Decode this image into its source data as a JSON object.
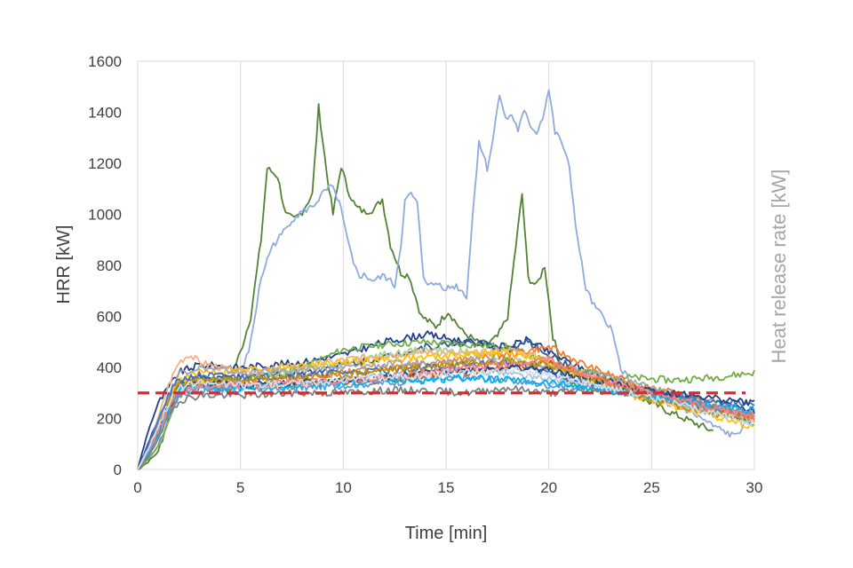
{
  "chart_data": {
    "type": "line",
    "xlabel": "Time [min]",
    "ylabel": "HRR [kW]",
    "ylabel_right": "Heat release rate [kW]",
    "xlim": [
      0,
      30
    ],
    "ylim": [
      0,
      1600
    ],
    "x_ticks": [
      "0",
      "5",
      "10",
      "15",
      "20",
      "25",
      "30"
    ],
    "y_ticks": [
      "0",
      "200",
      "400",
      "600",
      "800",
      "1000",
      "1200",
      "1400",
      "1600"
    ],
    "grid": "vertical gridlines",
    "legend": "none",
    "reference_line": {
      "y": 300,
      "color": "#e8262b",
      "style": "dashed"
    },
    "series": [
      {
        "color": "#548235",
        "x": [
          0,
          0.5,
          1,
          1.5,
          2,
          3,
          4,
          4.5,
          5,
          5.5,
          6,
          6.3,
          6.8,
          7.2,
          7.6,
          8,
          8.5,
          8.8,
          9.2,
          9.5,
          9.9,
          10.2,
          10.6,
          11,
          11.5,
          11.9,
          12.3,
          12.8,
          13.2,
          13.8,
          14.5,
          15.1,
          15.8,
          16.5,
          17,
          17.5,
          18,
          18.4,
          18.7,
          19,
          19.4,
          19.8,
          20.2,
          20.8,
          21.2,
          22,
          24,
          26,
          28
        ],
        "y": [
          0,
          30,
          70,
          200,
          330,
          360,
          340,
          360,
          460,
          600,
          900,
          1180,
          1150,
          1000,
          980,
          1010,
          1080,
          1420,
          1160,
          1000,
          1190,
          1100,
          1030,
          1010,
          1020,
          1060,
          880,
          770,
          760,
          600,
          560,
          620,
          540,
          500,
          490,
          520,
          600,
          880,
          1080,
          750,
          720,
          800,
          520,
          360,
          330,
          320,
          300,
          220,
          150
        ]
      },
      {
        "color": "#8faadc",
        "x": [
          0,
          0.5,
          1,
          1.5,
          2,
          3,
          4,
          5,
          5.5,
          6,
          6.5,
          7,
          7.5,
          8,
          8.5,
          9,
          9.4,
          9.8,
          10.2,
          10.5,
          10.8,
          11,
          11.5,
          12,
          12.5,
          12.8,
          13,
          13.3,
          13.6,
          13.9,
          14.2,
          14.6,
          15,
          15.5,
          16,
          16.3,
          16.6,
          17,
          17.3,
          17.6,
          17.9,
          18.2,
          18.5,
          18.8,
          19.1,
          19.4,
          19.7,
          20,
          20.3,
          20.6,
          21,
          21.4,
          21.8,
          22.2,
          22.6,
          23,
          23.5,
          24,
          25,
          26,
          27,
          28,
          29,
          30
        ],
        "y": [
          0,
          40,
          90,
          200,
          300,
          320,
          300,
          350,
          500,
          750,
          870,
          920,
          980,
          1010,
          1030,
          1080,
          1110,
          1050,
          900,
          800,
          760,
          760,
          740,
          760,
          720,
          880,
          1050,
          1080,
          1040,
          760,
          720,
          730,
          710,
          720,
          680,
          1000,
          1290,
          1180,
          1300,
          1480,
          1370,
          1390,
          1330,
          1400,
          1350,
          1320,
          1380,
          1490,
          1320,
          1290,
          1180,
          900,
          710,
          640,
          600,
          560,
          400,
          340,
          300,
          260,
          220,
          170,
          130,
          210
        ]
      },
      {
        "color": "#1f3f8f",
        "x": [
          0,
          0.5,
          1,
          1.5,
          2,
          3,
          5,
          8,
          10,
          12,
          14,
          16,
          18,
          19,
          20,
          22,
          24,
          26,
          28,
          30
        ],
        "y": [
          0,
          150,
          260,
          320,
          380,
          410,
          400,
          420,
          450,
          500,
          530,
          500,
          480,
          510,
          460,
          380,
          330,
          290,
          260,
          230
        ]
      },
      {
        "color": "#2f5597",
        "x": [
          0,
          0.5,
          1,
          1.5,
          2,
          3,
          5,
          8,
          10,
          12,
          14,
          16,
          18,
          19,
          20,
          22,
          24,
          26,
          28,
          30
        ],
        "y": [
          0,
          100,
          200,
          280,
          330,
          360,
          360,
          380,
          410,
          440,
          480,
          500,
          470,
          500,
          450,
          360,
          310,
          270,
          230,
          180
        ]
      },
      {
        "color": "#70ad47",
        "x": [
          0,
          0.5,
          1,
          1.5,
          2,
          3,
          5,
          8,
          10,
          12,
          14,
          16,
          18,
          20,
          22,
          24,
          26,
          28,
          30
        ],
        "y": [
          0,
          40,
          90,
          190,
          300,
          340,
          350,
          400,
          470,
          490,
          500,
          490,
          480,
          420,
          380,
          360,
          350,
          360,
          380
        ]
      },
      {
        "color": "#a9d18e",
        "x": [
          0,
          0.5,
          1,
          1.5,
          2,
          3,
          5,
          8,
          10,
          12,
          14,
          16,
          18,
          20,
          22,
          24,
          26,
          28,
          30
        ],
        "y": [
          0,
          60,
          140,
          240,
          320,
          340,
          350,
          390,
          420,
          450,
          470,
          460,
          440,
          400,
          350,
          310,
          280,
          240,
          200
        ]
      },
      {
        "color": "#ed7d31",
        "x": [
          0,
          0.5,
          1,
          1.5,
          2,
          3,
          5,
          8,
          10,
          12,
          14,
          16,
          18,
          20,
          22,
          24,
          26,
          28,
          30
        ],
        "y": [
          0,
          70,
          160,
          260,
          330,
          350,
          340,
          360,
          380,
          400,
          420,
          430,
          450,
          480,
          400,
          340,
          300,
          250,
          210
        ]
      },
      {
        "color": "#f4b183",
        "x": [
          0,
          0.5,
          1,
          1.5,
          2,
          2.5,
          3,
          5,
          8,
          10,
          12,
          14,
          16,
          18,
          20,
          22,
          24,
          26,
          28,
          30
        ],
        "y": [
          0,
          80,
          200,
          330,
          420,
          450,
          420,
          380,
          400,
          430,
          450,
          460,
          450,
          470,
          430,
          370,
          320,
          270,
          230,
          190
        ]
      },
      {
        "color": "#c55a11",
        "x": [
          0,
          0.5,
          1,
          1.5,
          2,
          3,
          5,
          8,
          10,
          12,
          14,
          16,
          18,
          20,
          22,
          24,
          26,
          28,
          30
        ],
        "y": [
          0,
          60,
          140,
          230,
          290,
          320,
          320,
          330,
          340,
          350,
          370,
          380,
          400,
          420,
          360,
          320,
          280,
          240,
          200
        ]
      },
      {
        "color": "#ffc000",
        "x": [
          0,
          0.5,
          1,
          1.5,
          2,
          3,
          5,
          8,
          10,
          12,
          14,
          16,
          18,
          20,
          22,
          24,
          26,
          28,
          30
        ],
        "y": [
          0,
          80,
          170,
          280,
          350,
          380,
          390,
          410,
          420,
          430,
          440,
          450,
          460,
          420,
          340,
          290,
          250,
          210,
          170
        ]
      },
      {
        "color": "#5b9bd5",
        "x": [
          0,
          0.5,
          1,
          1.5,
          2,
          3,
          5,
          8,
          10,
          12,
          14,
          16,
          18,
          20,
          22,
          24,
          26,
          28,
          30
        ],
        "y": [
          0,
          50,
          120,
          220,
          290,
          310,
          310,
          320,
          330,
          340,
          350,
          360,
          350,
          330,
          320,
          300,
          270,
          240,
          220
        ]
      },
      {
        "color": "#9dc3e6",
        "x": [
          0,
          0.5,
          1,
          1.5,
          2,
          3,
          5,
          8,
          10,
          12,
          14,
          16,
          18,
          20,
          22,
          24,
          26,
          28,
          30
        ],
        "y": [
          0,
          70,
          160,
          250,
          310,
          330,
          320,
          340,
          350,
          370,
          380,
          390,
          380,
          350,
          330,
          300,
          260,
          220,
          190
        ]
      },
      {
        "color": "#7f7f7f",
        "x": [
          0,
          0.5,
          1,
          1.5,
          2,
          3,
          5,
          8,
          10,
          12,
          14,
          16,
          18,
          20,
          22,
          24,
          26,
          28,
          30
        ],
        "y": [
          0,
          50,
          120,
          210,
          270,
          290,
          290,
          300,
          300,
          310,
          310,
          300,
          320,
          300,
          310,
          300,
          270,
          240,
          210
        ]
      },
      {
        "color": "#a5a5a5",
        "x": [
          0,
          0.5,
          1,
          1.5,
          2,
          3,
          5,
          8,
          10,
          12,
          14,
          16,
          18,
          20,
          22,
          24,
          26,
          28,
          30
        ],
        "y": [
          0,
          80,
          180,
          290,
          380,
          400,
          380,
          390,
          400,
          410,
          420,
          430,
          420,
          400,
          380,
          340,
          300,
          260,
          220
        ]
      },
      {
        "color": "#4472c4",
        "x": [
          0,
          0.5,
          1,
          1.5,
          2,
          3,
          5,
          8,
          10,
          12,
          14,
          16,
          18,
          20,
          22,
          24,
          26,
          28,
          30
        ],
        "y": [
          0,
          90,
          190,
          290,
          350,
          370,
          360,
          370,
          380,
          390,
          400,
          410,
          420,
          380,
          340,
          310,
          290,
          270,
          250
        ]
      },
      {
        "color": "#264478",
        "x": [
          0,
          0.5,
          1,
          1.5,
          2,
          3,
          5,
          8,
          10,
          12,
          14,
          16,
          18,
          20,
          22,
          24,
          26,
          28,
          30
        ],
        "y": [
          0,
          60,
          150,
          250,
          320,
          340,
          330,
          340,
          350,
          360,
          380,
          390,
          400,
          390,
          350,
          320,
          300,
          280,
          260
        ]
      },
      {
        "color": "#bf9000",
        "x": [
          0,
          0.5,
          1,
          1.5,
          2,
          3,
          5,
          8,
          10,
          12,
          14,
          16,
          18,
          20,
          22,
          24,
          26,
          28,
          30
        ],
        "y": [
          0,
          70,
          160,
          260,
          330,
          350,
          350,
          360,
          370,
          390,
          400,
          420,
          430,
          410,
          360,
          300,
          250,
          220,
          190
        ]
      },
      {
        "color": "#00b0f0",
        "x": [
          0,
          0.5,
          1,
          1.5,
          2,
          3,
          5,
          8,
          10,
          12,
          14,
          16,
          18,
          20,
          22,
          24,
          26,
          28,
          30
        ],
        "y": [
          0,
          60,
          140,
          240,
          310,
          330,
          320,
          330,
          340,
          350,
          350,
          360,
          350,
          340,
          320,
          300,
          270,
          250,
          230
        ]
      },
      {
        "color": "#ff7c80",
        "x": [
          0,
          0.5,
          1,
          1.5,
          2,
          3,
          5,
          8,
          10,
          12,
          14,
          16,
          18,
          20,
          22,
          24,
          26,
          28,
          30
        ],
        "y": [
          0,
          70,
          150,
          240,
          300,
          330,
          330,
          340,
          350,
          360,
          380,
          400,
          410,
          430,
          360,
          320,
          280,
          240,
          210
        ]
      },
      {
        "color": "#d6dce4",
        "x": [
          0,
          0.5,
          1,
          1.5,
          2,
          3,
          5,
          8,
          10,
          12,
          14,
          16,
          18,
          20,
          22,
          24,
          26,
          28,
          30
        ],
        "y": [
          0,
          80,
          170,
          260,
          320,
          340,
          330,
          340,
          350,
          360,
          370,
          380,
          390,
          370,
          340,
          300,
          260,
          220,
          180
        ]
      }
    ]
  }
}
